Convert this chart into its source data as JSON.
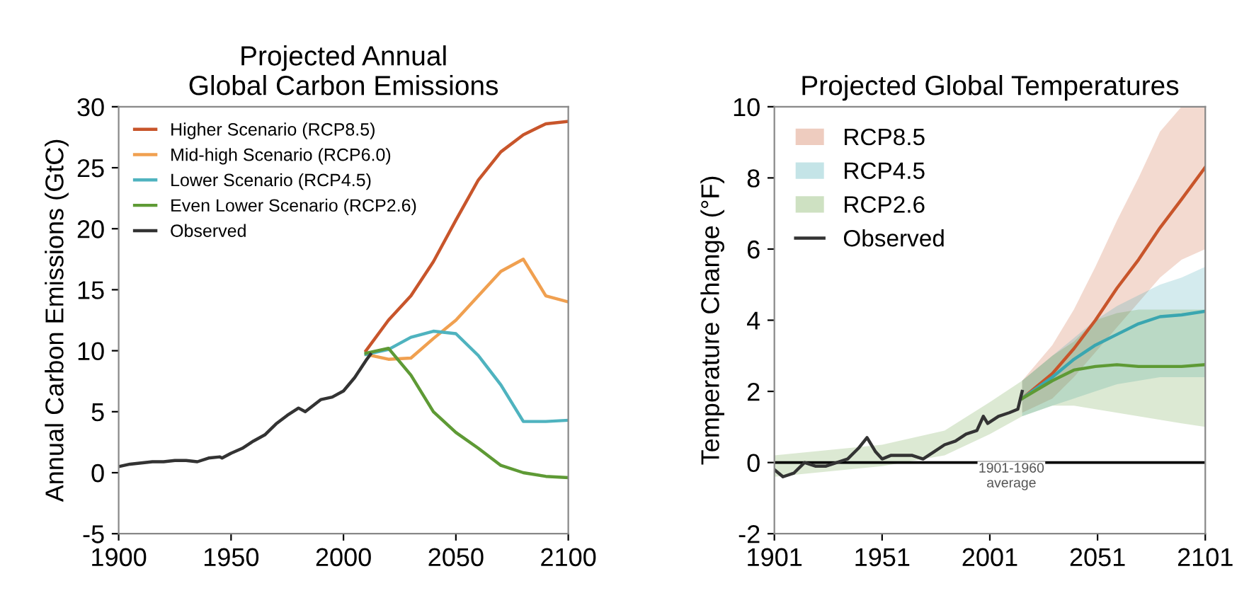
{
  "chart_data": [
    {
      "type": "line",
      "title": "Projected Annual\nGlobal Carbon Emissions",
      "ylabel": "Annual Carbon Emissions (GtC)",
      "xlim": [
        1900,
        2100
      ],
      "ylim": [
        -5,
        30
      ],
      "xticks": [
        1900,
        1950,
        2000,
        2050,
        2100
      ],
      "yticks": [
        -5,
        0,
        5,
        10,
        15,
        20,
        25,
        30
      ],
      "grid": false,
      "legend": "top left",
      "series": [
        {
          "name": "Higher Scenario (RCP8.5)",
          "color": "#c8552b",
          "x": [
            2010,
            2020,
            2030,
            2040,
            2050,
            2060,
            2070,
            2080,
            2090,
            2100
          ],
          "values": [
            10,
            12.5,
            14.5,
            17.3,
            20.7,
            24,
            26.3,
            27.7,
            28.6,
            28.8
          ]
        },
        {
          "name": "Mid-high Scenario (RCP6.0)",
          "color": "#f0a050",
          "x": [
            2010,
            2020,
            2030,
            2040,
            2050,
            2060,
            2070,
            2080,
            2090,
            2100
          ],
          "values": [
            9.7,
            9.3,
            9.4,
            11,
            12.5,
            14.5,
            16.5,
            17.5,
            14.5,
            14
          ]
        },
        {
          "name": "Lower Scenario (RCP4.5)",
          "color": "#4fb3bf",
          "x": [
            2010,
            2020,
            2030,
            2040,
            2050,
            2060,
            2070,
            2080,
            2090,
            2100
          ],
          "values": [
            9.7,
            10.1,
            11.1,
            11.6,
            11.4,
            9.6,
            7.2,
            4.2,
            4.2,
            4.3
          ]
        },
        {
          "name": "Even Lower Scenario (RCP2.6)",
          "color": "#5e9a35",
          "x": [
            2010,
            2020,
            2030,
            2040,
            2050,
            2060,
            2070,
            2080,
            2090,
            2100
          ],
          "values": [
            9.8,
            10.2,
            8,
            5,
            3.3,
            2,
            0.6,
            0,
            -0.3,
            -0.4
          ]
        },
        {
          "name": "Observed",
          "color": "#333333",
          "x": [
            1900,
            1905,
            1910,
            1915,
            1920,
            1925,
            1930,
            1935,
            1940,
            1945,
            1946,
            1950,
            1955,
            1960,
            1965,
            1970,
            1975,
            1980,
            1983,
            1990,
            1995,
            2000,
            2005,
            2010,
            2012
          ],
          "values": [
            0.5,
            0.7,
            0.8,
            0.9,
            0.9,
            1.0,
            1.0,
            0.9,
            1.2,
            1.3,
            1.2,
            1.6,
            2.0,
            2.6,
            3.1,
            4.0,
            4.7,
            5.3,
            5.0,
            6.0,
            6.2,
            6.7,
            7.8,
            9.2,
            9.7
          ]
        }
      ]
    },
    {
      "type": "line",
      "title": "Projected Global Temperatures",
      "ylabel": "Temperature Change (°F)",
      "xlim": [
        1901,
        2101
      ],
      "ylim": [
        -2,
        10
      ],
      "xticks": [
        1901,
        1951,
        2001,
        2051,
        2101
      ],
      "yticks": [
        -2,
        0,
        2,
        4,
        6,
        8,
        10
      ],
      "grid": false,
      "legend": "top left",
      "ref_lines": [
        {
          "axis": "y",
          "value": 0,
          "label": "1901-1960\naverage",
          "color": "#000000"
        }
      ],
      "series": [
        {
          "name": "RCP8.5",
          "color": "#c8552b",
          "x": [
            2016,
            2030,
            2040,
            2050,
            2060,
            2070,
            2080,
            2090,
            2101
          ],
          "values": [
            1.8,
            2.5,
            3.2,
            4.0,
            4.9,
            5.7,
            6.6,
            7.4,
            8.3
          ],
          "lower": [
            1.4,
            1.8,
            2.4,
            3.1,
            3.8,
            4.5,
            5.2,
            5.7,
            6.0
          ],
          "upper": [
            2.3,
            3.3,
            4.3,
            5.5,
            6.8,
            8.0,
            9.3,
            10,
            10
          ]
        },
        {
          "name": "RCP4.5",
          "color": "#3aa6b0",
          "x": [
            2016,
            2030,
            2040,
            2050,
            2060,
            2070,
            2080,
            2090,
            2101
          ],
          "values": [
            1.8,
            2.4,
            2.9,
            3.3,
            3.6,
            3.9,
            4.1,
            4.15,
            4.25
          ],
          "lower": [
            1.3,
            1.6,
            1.8,
            2.0,
            2.2,
            2.3,
            2.4,
            2.4,
            2.4
          ],
          "upper": [
            2.3,
            3.0,
            3.5,
            4.0,
            4.4,
            4.7,
            5.0,
            5.2,
            5.5
          ]
        },
        {
          "name": "RCP2.6",
          "color": "#5e9a35",
          "x": [
            1901,
            1951,
            1980,
            2001,
            2016,
            2030,
            2040,
            2050,
            2060,
            2070,
            2080,
            2090,
            2101
          ],
          "values": [
            null,
            null,
            null,
            null,
            1.8,
            2.3,
            2.6,
            2.7,
            2.75,
            2.7,
            2.7,
            2.7,
            2.75
          ],
          "lower": [
            -0.4,
            -0.1,
            0.2,
            0.8,
            1.3,
            1.6,
            1.6,
            1.5,
            1.4,
            1.3,
            1.2,
            1.1,
            1.0
          ],
          "upper": [
            0.2,
            0.5,
            0.9,
            1.7,
            2.3,
            3.0,
            3.4,
            4.0,
            4.2,
            4.3,
            4.3,
            4.3,
            4.3
          ]
        },
        {
          "name": "Observed",
          "color": "#333333",
          "x": [
            1901,
            1905,
            1910,
            1915,
            1920,
            1925,
            1930,
            1935,
            1940,
            1944,
            1948,
            1951,
            1955,
            1960,
            1965,
            1970,
            1975,
            1980,
            1985,
            1990,
            1995,
            1998,
            2000,
            2005,
            2010,
            2014,
            2016
          ],
          "values": [
            -0.2,
            -0.4,
            -0.3,
            0.0,
            -0.1,
            -0.1,
            0.0,
            0.1,
            0.4,
            0.7,
            0.3,
            0.1,
            0.2,
            0.2,
            0.2,
            0.1,
            0.3,
            0.5,
            0.6,
            0.8,
            0.9,
            1.3,
            1.1,
            1.3,
            1.4,
            1.5,
            2.0
          ]
        }
      ]
    }
  ]
}
